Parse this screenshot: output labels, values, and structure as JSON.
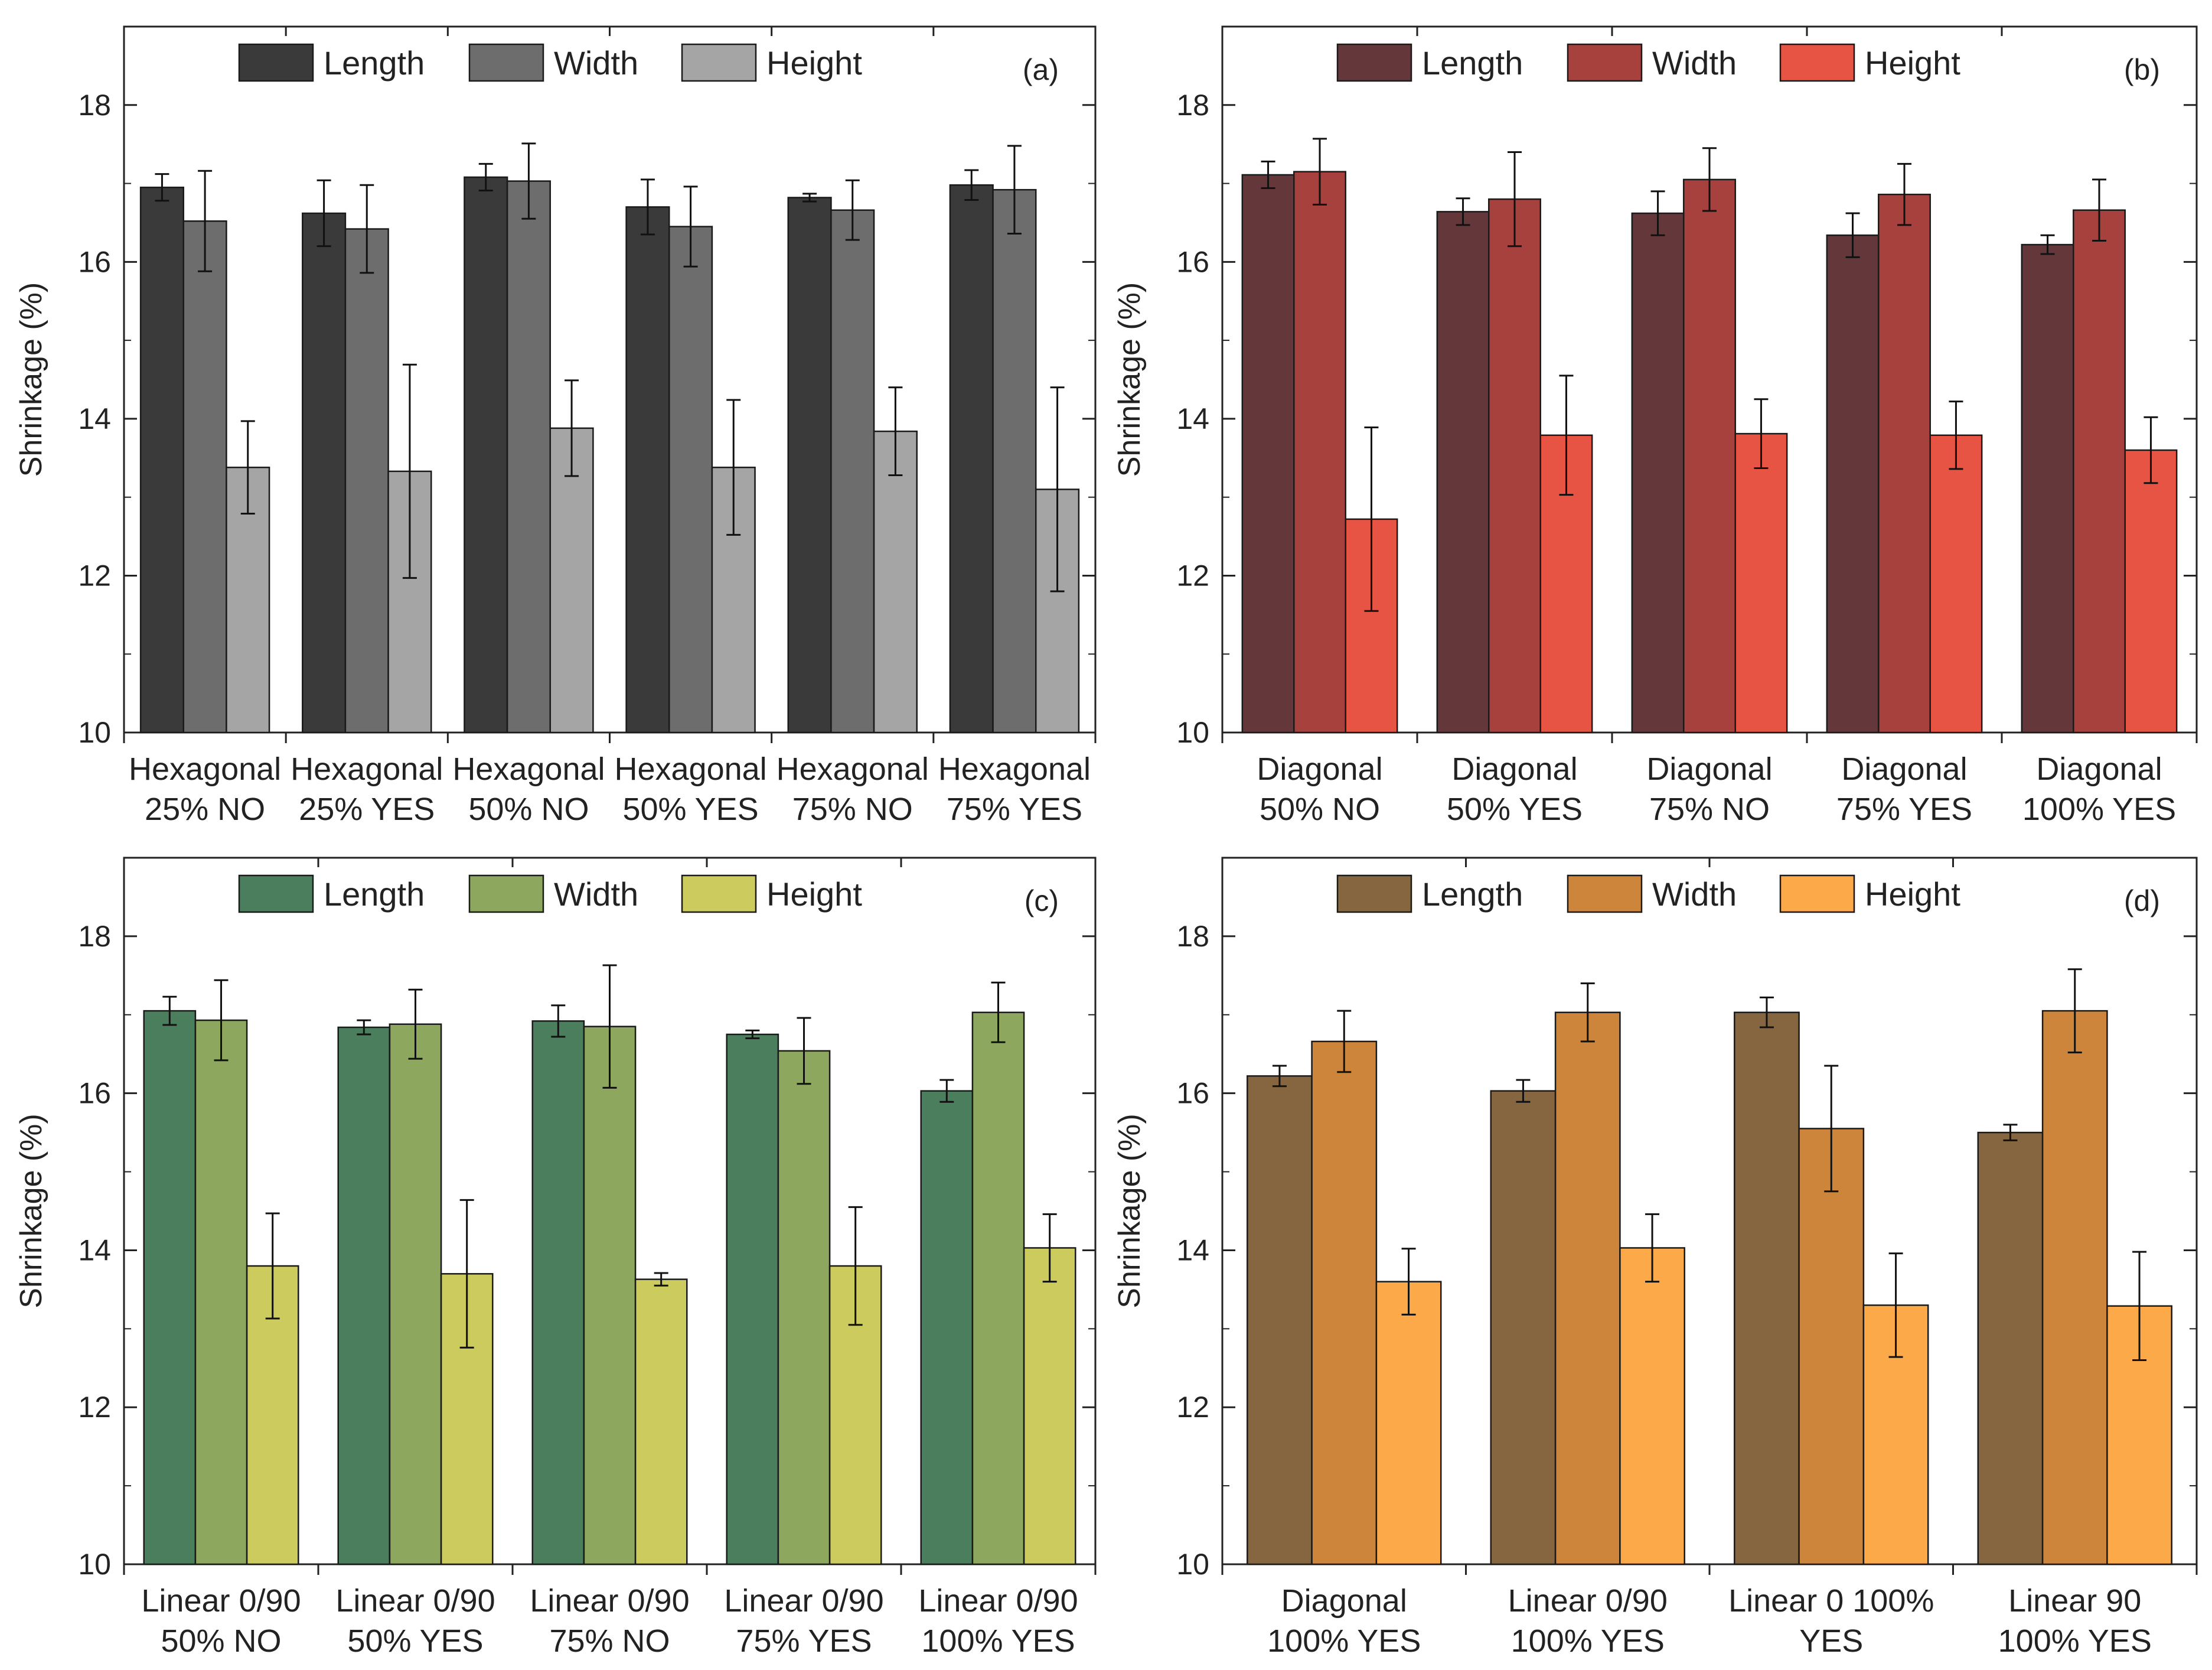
{
  "figure": {
    "panels_count": 4,
    "series_names": [
      "Length",
      "Width",
      "Height"
    ]
  },
  "chart_data": [
    {
      "type": "bar",
      "panel_label": "(a)",
      "ylabel": "Shrinkage (%)",
      "xlabel": "",
      "ylim": [
        10,
        19
      ],
      "yticks": [
        10,
        12,
        14,
        16,
        18
      ],
      "legend_position": "top",
      "categories": [
        [
          "Hexagonal",
          "25% NO"
        ],
        [
          "Hexagonal",
          "25% YES"
        ],
        [
          "Hexagonal",
          "50% NO"
        ],
        [
          "Hexagonal",
          "50% YES"
        ],
        [
          "Hexagonal",
          "75% NO"
        ],
        [
          "Hexagonal",
          "75% YES"
        ]
      ],
      "series": [
        {
          "name": "Length",
          "color": "#3a3a3a",
          "values": [
            16.95,
            16.62,
            17.08,
            16.7,
            16.82,
            16.98
          ],
          "errors": [
            0.17,
            0.42,
            0.17,
            0.35,
            0.05,
            0.19
          ]
        },
        {
          "name": "Width",
          "color": "#6d6d6d",
          "values": [
            16.52,
            16.42,
            17.03,
            16.45,
            16.66,
            16.92
          ],
          "errors": [
            0.64,
            0.56,
            0.48,
            0.51,
            0.38,
            0.56
          ]
        },
        {
          "name": "Height",
          "color": "#a5a5a5",
          "values": [
            13.38,
            13.33,
            13.88,
            13.38,
            13.84,
            13.1
          ],
          "errors": [
            0.59,
            1.36,
            0.61,
            0.86,
            0.56,
            1.3
          ]
        }
      ]
    },
    {
      "type": "bar",
      "panel_label": "(b)",
      "ylabel": "Shrinkage (%)",
      "xlabel": "",
      "ylim": [
        10,
        19
      ],
      "yticks": [
        10,
        12,
        14,
        16,
        18
      ],
      "legend_position": "top",
      "categories": [
        [
          "Diagonal",
          "50% NO"
        ],
        [
          "Diagonal",
          "50% YES"
        ],
        [
          "Diagonal",
          "75% NO"
        ],
        [
          "Diagonal",
          "75% YES"
        ],
        [
          "Diagonal",
          "100% YES"
        ]
      ],
      "series": [
        {
          "name": "Length",
          "color": "#64383a",
          "values": [
            17.11,
            16.64,
            16.62,
            16.34,
            16.22
          ],
          "errors": [
            0.17,
            0.17,
            0.28,
            0.28,
            0.12
          ]
        },
        {
          "name": "Width",
          "color": "#a6413d",
          "values": [
            17.15,
            16.8,
            17.05,
            16.86,
            16.66
          ],
          "errors": [
            0.42,
            0.6,
            0.4,
            0.39,
            0.39
          ]
        },
        {
          "name": "Height",
          "color": "#e85444",
          "values": [
            12.72,
            13.79,
            13.81,
            13.79,
            13.6
          ],
          "errors": [
            1.17,
            0.76,
            0.44,
            0.43,
            0.42
          ]
        }
      ]
    },
    {
      "type": "bar",
      "panel_label": "(c)",
      "ylabel": "Shrinkage (%)",
      "xlabel": "",
      "ylim": [
        10,
        19
      ],
      "yticks": [
        10,
        12,
        14,
        16,
        18
      ],
      "legend_position": "top",
      "categories": [
        [
          "Linear 0/90",
          "50% NO"
        ],
        [
          "Linear 0/90",
          "50% YES"
        ],
        [
          "Linear 0/90",
          "75% NO"
        ],
        [
          "Linear 0/90",
          "75% YES"
        ],
        [
          "Linear 0/90",
          "100% YES"
        ]
      ],
      "series": [
        {
          "name": "Length",
          "color": "#4b7e5d",
          "values": [
            17.05,
            16.84,
            16.92,
            16.75,
            16.03
          ],
          "errors": [
            0.18,
            0.09,
            0.2,
            0.05,
            0.14
          ]
        },
        {
          "name": "Width",
          "color": "#8da75e",
          "values": [
            16.93,
            16.88,
            16.85,
            16.54,
            17.03
          ],
          "errors": [
            0.51,
            0.44,
            0.78,
            0.42,
            0.38
          ]
        },
        {
          "name": "Height",
          "color": "#cccb5e",
          "values": [
            13.8,
            13.7,
            13.63,
            13.8,
            14.03
          ],
          "errors": [
            0.67,
            0.94,
            0.08,
            0.75,
            0.43
          ]
        }
      ]
    },
    {
      "type": "bar",
      "panel_label": "(d)",
      "ylabel": "Shrinkage (%)",
      "xlabel": "",
      "ylim": [
        10,
        19
      ],
      "yticks": [
        10,
        12,
        14,
        16,
        18
      ],
      "legend_position": "top",
      "categories": [
        [
          "Diagonal",
          "100% YES"
        ],
        [
          "Linear 0/90",
          "100% YES"
        ],
        [
          "Linear 0 100%",
          "YES"
        ],
        [
          "Linear 90",
          "100% YES"
        ]
      ],
      "series": [
        {
          "name": "Length",
          "color": "#866640",
          "values": [
            16.22,
            16.03,
            17.03,
            15.5
          ],
          "errors": [
            0.13,
            0.14,
            0.19,
            0.1
          ]
        },
        {
          "name": "Width",
          "color": "#cd853c",
          "values": [
            16.66,
            17.03,
            15.55,
            17.05
          ],
          "errors": [
            0.39,
            0.37,
            0.8,
            0.53
          ]
        },
        {
          "name": "Height",
          "color": "#fca94a",
          "values": [
            13.6,
            14.03,
            13.3,
            13.29
          ],
          "errors": [
            0.42,
            0.43,
            0.66,
            0.69
          ]
        }
      ]
    }
  ]
}
